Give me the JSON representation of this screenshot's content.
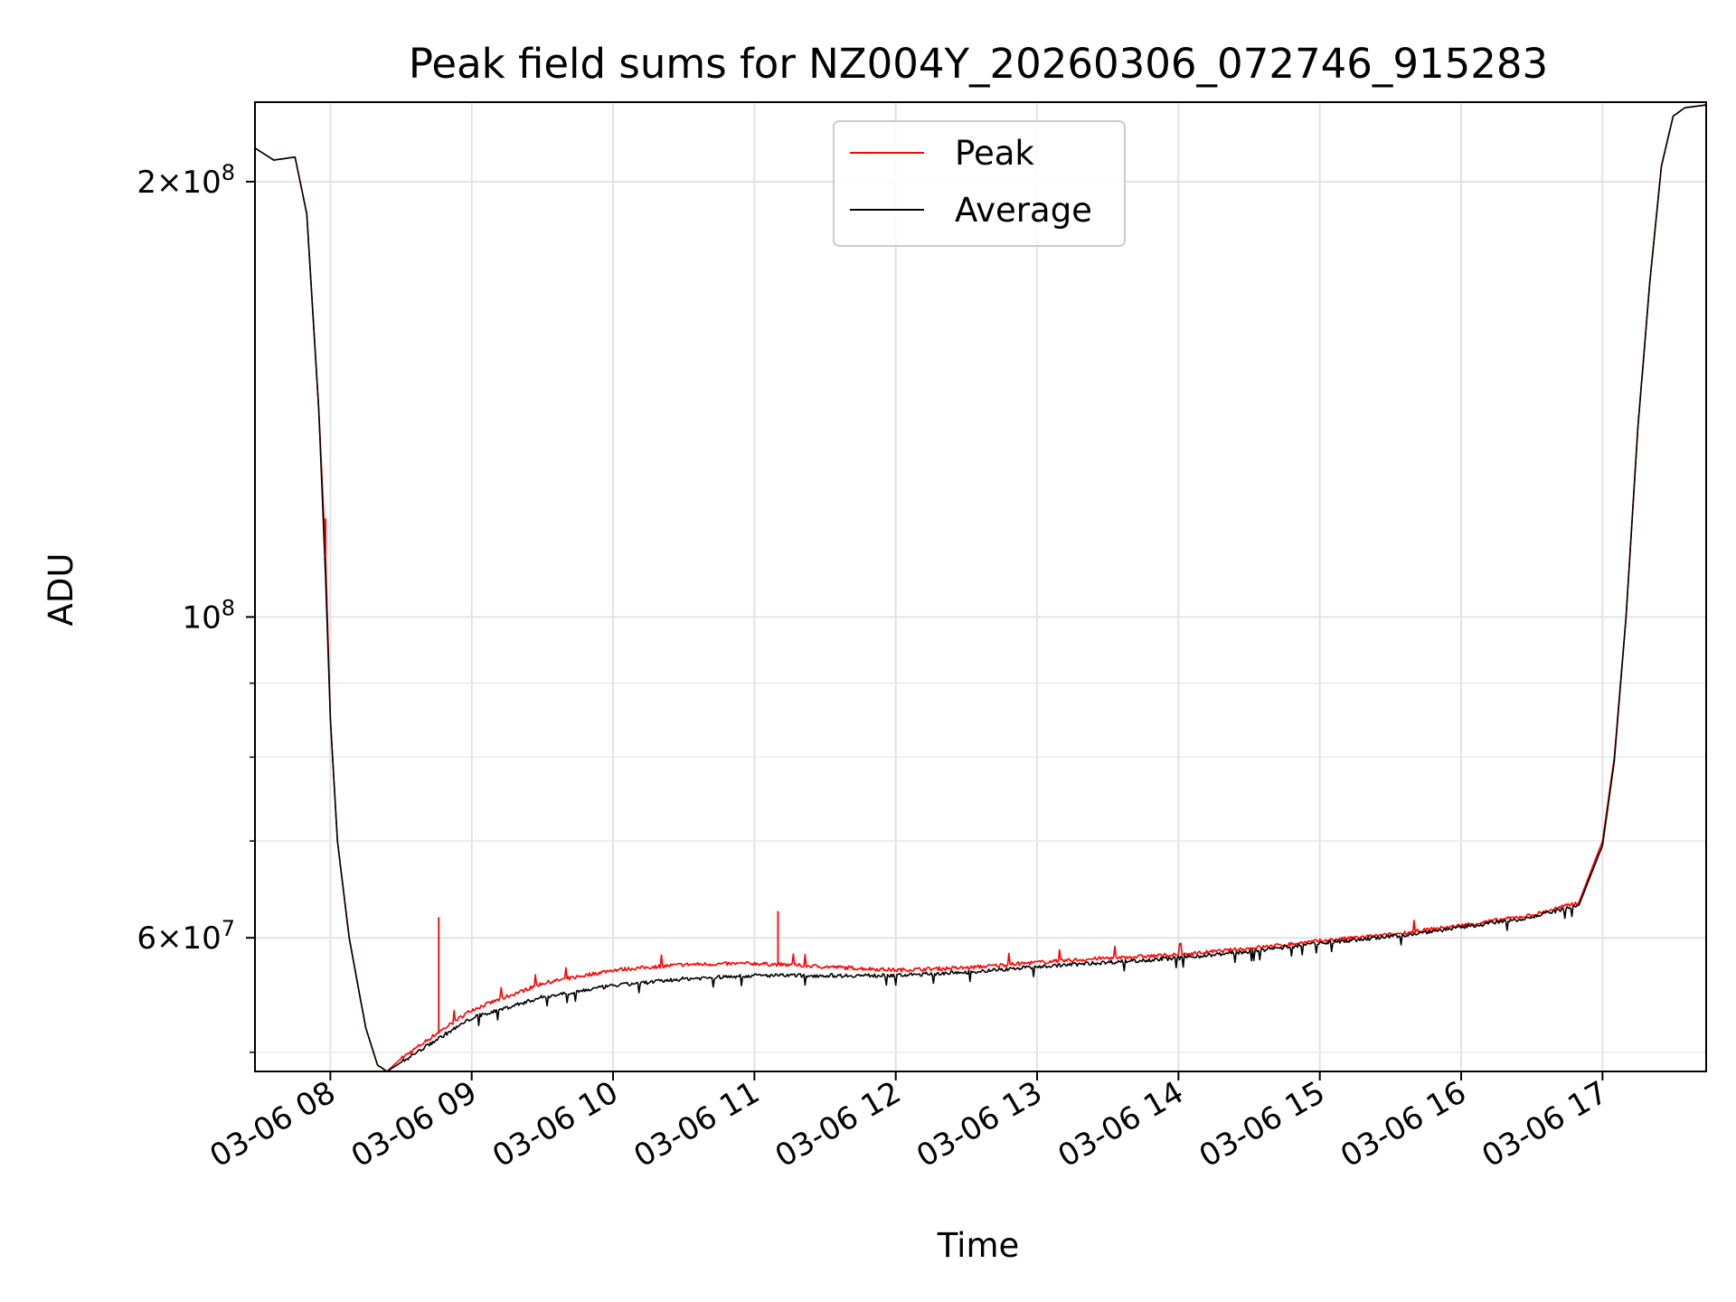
{
  "chart_data": {
    "type": "line",
    "title": "Peak field sums for NZ004Y_20260306_072746_915283",
    "xlabel": "Time",
    "ylabel": "ADU",
    "yscale": "log",
    "xlim": [
      "2026-03-06 07:28",
      "2026-03-06 17:44"
    ],
    "ylim": [
      48500000,
      227000000
    ],
    "grid": true,
    "legend_position": "upper center",
    "x_tick_labels": [
      "03-06 08",
      "03-06 09",
      "03-06 10",
      "03-06 11",
      "03-06 12",
      "03-06 13",
      "03-06 14",
      "03-06 15",
      "03-06 16",
      "03-06 17"
    ],
    "x_tick_times": [
      "2026-03-06 08:00",
      "2026-03-06 09:00",
      "2026-03-06 10:00",
      "2026-03-06 11:00",
      "2026-03-06 12:00",
      "2026-03-06 13:00",
      "2026-03-06 14:00",
      "2026-03-06 15:00",
      "2026-03-06 16:00",
      "2026-03-06 17:00"
    ],
    "y_ticks": [
      {
        "value": 200000000,
        "mantissa": "2",
        "exp": "8"
      },
      {
        "value": 100000000,
        "mantissa": "",
        "exp": "8"
      },
      {
        "value": 60000000,
        "mantissa": "6",
        "exp": "7"
      }
    ],
    "y_minor_ticks": [
      50000000,
      70000000,
      80000000,
      90000000
    ],
    "x": [
      "2026-03-06 07:28",
      "2026-03-06 07:36",
      "2026-03-06 07:45",
      "2026-03-06 07:50",
      "2026-03-06 07:55",
      "2026-03-06 07:58",
      "2026-03-06 08:00",
      "2026-03-06 08:03",
      "2026-03-06 08:08",
      "2026-03-06 08:15",
      "2026-03-06 08:20",
      "2026-03-06 08:24",
      "2026-03-06 08:30",
      "2026-03-06 08:45",
      "2026-03-06 09:00",
      "2026-03-06 09:30",
      "2026-03-06 10:00",
      "2026-03-06 10:30",
      "2026-03-06 11:00",
      "2026-03-06 11:30",
      "2026-03-06 12:00",
      "2026-03-06 12:30",
      "2026-03-06 13:00",
      "2026-03-06 13:30",
      "2026-03-06 14:00",
      "2026-03-06 14:30",
      "2026-03-06 15:00",
      "2026-03-06 15:30",
      "2026-03-06 16:00",
      "2026-03-06 16:30",
      "2026-03-06 16:50",
      "2026-03-06 17:00",
      "2026-03-06 17:05",
      "2026-03-06 17:10",
      "2026-03-06 17:15",
      "2026-03-06 17:20",
      "2026-03-06 17:25",
      "2026-03-06 17:30",
      "2026-03-06 17:35",
      "2026-03-06 17:44"
    ],
    "series": [
      {
        "name": "Peak",
        "color": "#ff0000",
        "values": [
          211000000,
          207000000,
          208000000,
          190000000,
          140000000,
          110000000,
          85000000,
          70000000,
          60000000,
          52000000,
          49000000,
          48500000,
          49500000,
          51500000,
          53500000,
          55800000,
          57000000,
          57500000,
          57600000,
          57300000,
          57000000,
          57200000,
          57700000,
          58100000,
          58400000,
          59000000,
          59700000,
          60300000,
          61200000,
          62200000,
          63500000,
          70000000,
          80000000,
          100000000,
          135000000,
          170000000,
          205000000,
          222000000,
          225000000,
          226000000
        ]
      },
      {
        "name": "Average",
        "color": "#000000",
        "values": [
          211000000,
          207000000,
          208000000,
          190000000,
          140000000,
          106000000,
          85000000,
          70000000,
          60000000,
          52000000,
          49000000,
          48500000,
          49200000,
          51000000,
          52800000,
          54600000,
          55600000,
          56200000,
          56500000,
          56500000,
          56500000,
          56800000,
          57300000,
          57700000,
          58100000,
          58700000,
          59500000,
          60100000,
          61000000,
          62000000,
          63200000,
          69500000,
          79500000,
          100000000,
          135000000,
          170000000,
          205000000,
          222000000,
          225000000,
          226000000
        ]
      }
    ],
    "annotations": [
      {
        "x": "2026-03-06 07:58",
        "series": "Peak",
        "spike_value": 117000000
      },
      {
        "x": "2026-03-06 08:46",
        "series": "Peak",
        "spike_value": 62000000
      },
      {
        "x": "2026-03-06 11:10",
        "series": "Peak",
        "spike_value": 62600000
      }
    ]
  }
}
